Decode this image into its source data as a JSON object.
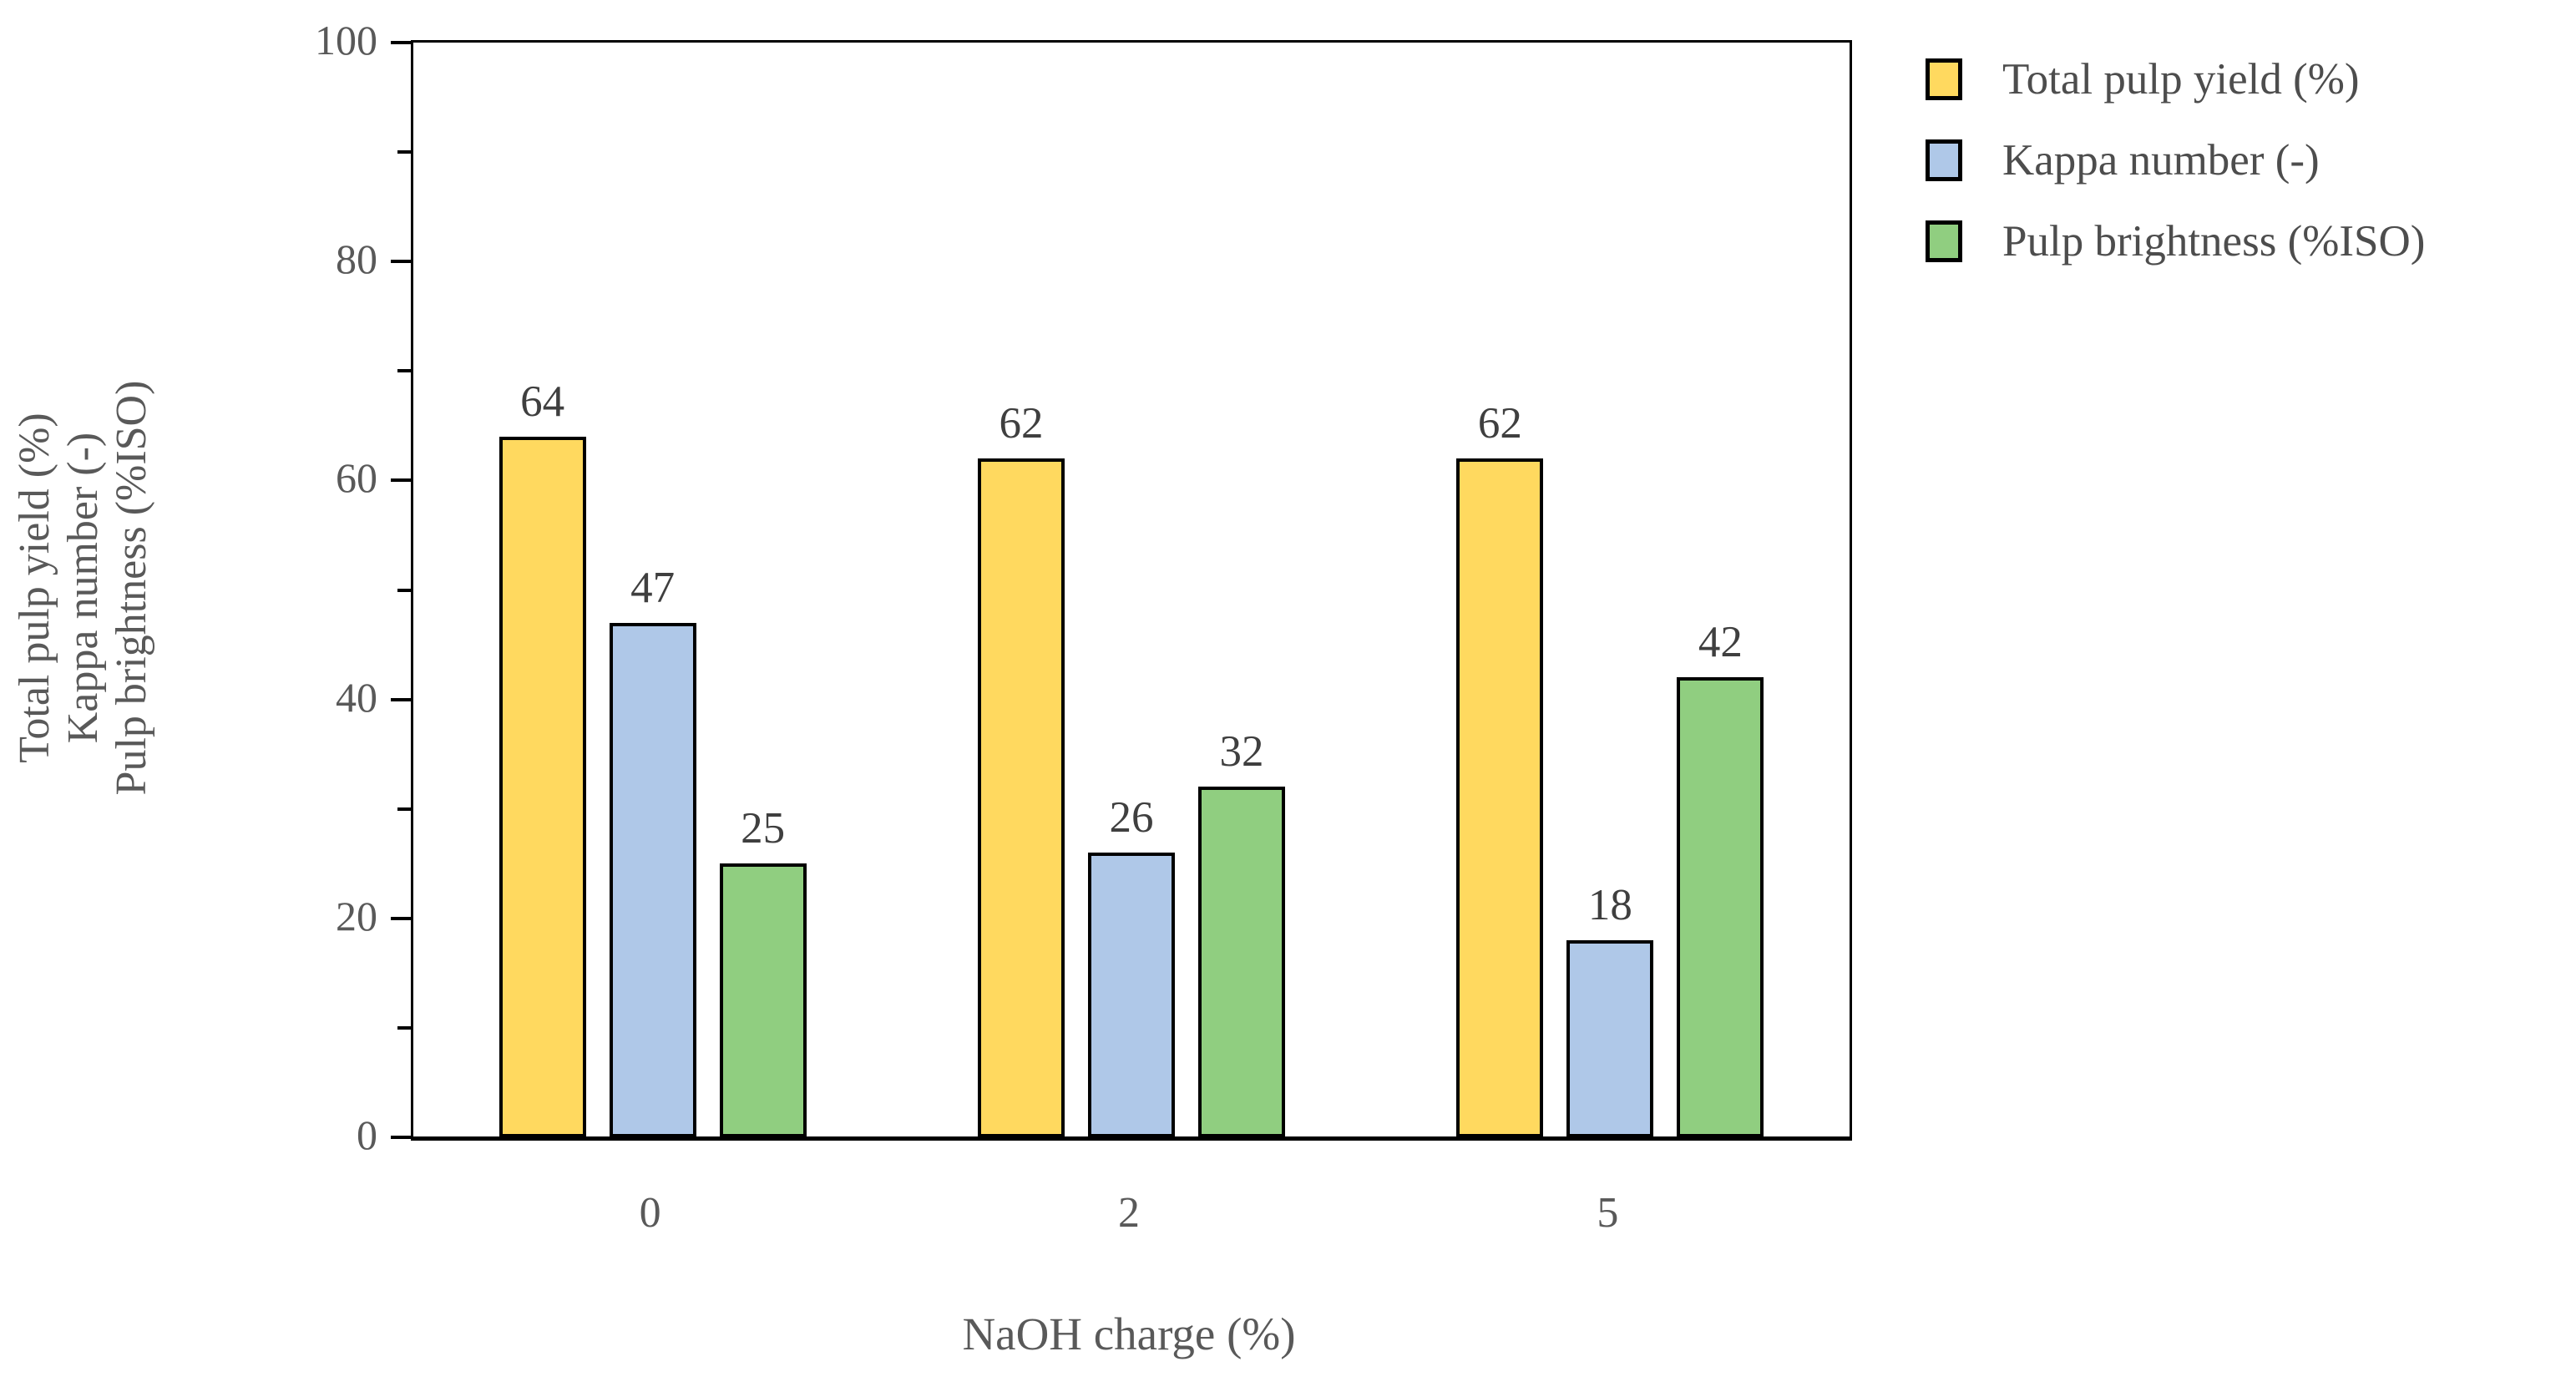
{
  "chart_data": {
    "type": "bar",
    "title": "",
    "categories": [
      "0",
      "2",
      "5"
    ],
    "series": [
      {
        "name": "Total pulp yield (%)",
        "values": [
          64,
          62,
          62
        ],
        "color": "#FFD95F"
      },
      {
        "name": "Kappa number (-)",
        "values": [
          47,
          26,
          18
        ],
        "color": "#AFC8E8"
      },
      {
        "name": "Pulp brightness (%ISO)",
        "values": [
          25,
          32,
          42
        ],
        "color": "#90CE80"
      }
    ],
    "data_labels": {
      "0": [
        64,
        47,
        25
      ],
      "2": [
        62,
        26,
        32
      ],
      "5": [
        62,
        18,
        42
      ]
    },
    "xlabel": "NaOH charge (%)",
    "ylabel_lines": [
      "Total pulp yield (%)",
      "Kappa number (-)",
      "Pulp brightness (%ISO)"
    ],
    "ylim": [
      0,
      100
    ],
    "ytick_major_step": 20,
    "ytick_minor_step": 10,
    "ytick_labels": [
      "0",
      "20",
      "40",
      "60",
      "80",
      "100"
    ],
    "grid": false,
    "legend_position": "top-right",
    "bar_outline_color": "#000000",
    "axis_color": "#000000",
    "tick_label_color": "#595959",
    "data_label_color": "#3f3f3f",
    "legend_text_color": "#4d4d4d"
  }
}
